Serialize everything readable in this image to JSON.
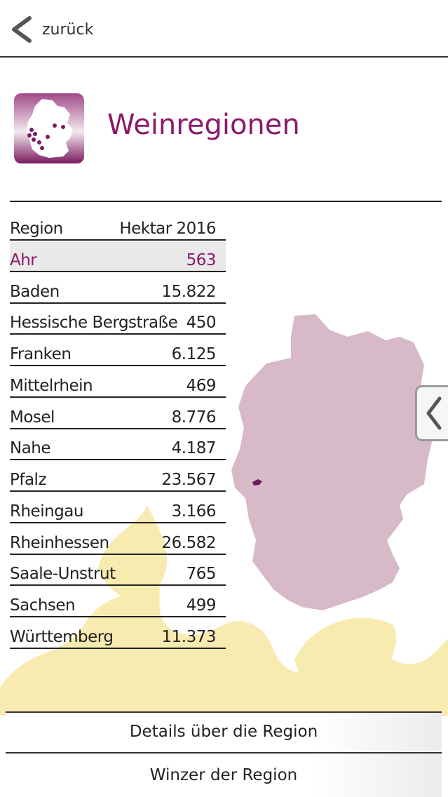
{
  "nav": {
    "back_label": "zurück"
  },
  "page": {
    "title": "Weinregionen"
  },
  "table": {
    "header": {
      "region": "Region",
      "hectares": "Hektar 2016"
    },
    "rows": [
      {
        "region": "Ahr",
        "hectares": "563",
        "selected": true
      },
      {
        "region": "Baden",
        "hectares": "15.822"
      },
      {
        "region": "Hessische Bergstraße",
        "hectares": "450"
      },
      {
        "region": "Franken",
        "hectares": "6.125"
      },
      {
        "region": "Mittelrhein",
        "hectares": "469"
      },
      {
        "region": "Mosel",
        "hectares": "8.776"
      },
      {
        "region": "Nahe",
        "hectares": "4.187"
      },
      {
        "region": "Pfalz",
        "hectares": "23.567"
      },
      {
        "region": "Rheingau",
        "hectares": "3.166"
      },
      {
        "region": "Rheinhessen",
        "hectares": "26.582"
      },
      {
        "region": "Saale-Unstrut",
        "hectares": "765"
      },
      {
        "region": "Sachsen",
        "hectares": "499"
      },
      {
        "region": "Württemberg",
        "hectares": "11.373"
      }
    ]
  },
  "buttons": {
    "details": "Details über die Region",
    "winemakers": "Winzer der Region"
  },
  "colors": {
    "accent": "#8b1a6b",
    "map_fill": "#d7b9c8",
    "highlight_region": "#6a1b5a",
    "watermark": "#f7e9a8"
  },
  "icons": {
    "back": "chevron-left-icon",
    "side_handle": "chevron-left-icon",
    "header": "germany-map-icon"
  }
}
